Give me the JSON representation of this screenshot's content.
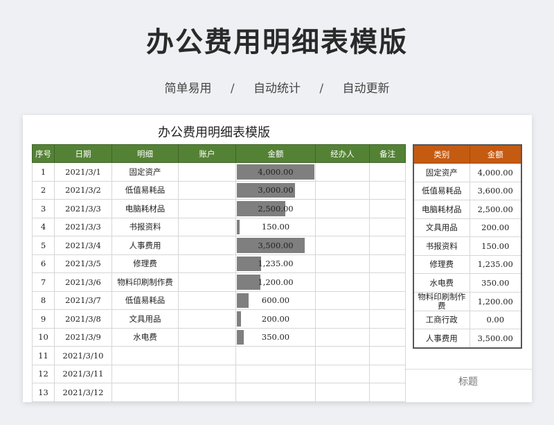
{
  "hero": {
    "title": "办公费用明细表模版",
    "subtitle": [
      "简单易用",
      "自动统计",
      "自动更新"
    ],
    "separator": "/"
  },
  "sheet": {
    "title": "办公费用明细表模版",
    "columns": [
      "序号",
      "日期",
      "明细",
      "账户",
      "金额",
      "经办人",
      "备注"
    ],
    "max_amount": 4000,
    "rows": [
      {
        "no": "1",
        "date": "2021/3/1",
        "item": "固定资产",
        "account": "",
        "amount": "4,000.00",
        "amount_value": 4000,
        "handler": "",
        "note": ""
      },
      {
        "no": "2",
        "date": "2021/3/2",
        "item": "低值易耗品",
        "account": "",
        "amount": "3,000.00",
        "amount_value": 3000,
        "handler": "",
        "note": ""
      },
      {
        "no": "3",
        "date": "2021/3/3",
        "item": "电脑耗材品",
        "account": "",
        "amount": "2,500.00",
        "amount_value": 2500,
        "handler": "",
        "note": ""
      },
      {
        "no": "4",
        "date": "2021/3/3",
        "item": "书报资料",
        "account": "",
        "amount": "150.00",
        "amount_value": 150,
        "handler": "",
        "note": ""
      },
      {
        "no": "5",
        "date": "2021/3/4",
        "item": "人事费用",
        "account": "",
        "amount": "3,500.00",
        "amount_value": 3500,
        "handler": "",
        "note": ""
      },
      {
        "no": "6",
        "date": "2021/3/5",
        "item": "修理费",
        "account": "",
        "amount": "1,235.00",
        "amount_value": 1235,
        "handler": "",
        "note": ""
      },
      {
        "no": "7",
        "date": "2021/3/6",
        "item": "物料印刷制作费",
        "account": "",
        "amount": "1,200.00",
        "amount_value": 1200,
        "handler": "",
        "note": ""
      },
      {
        "no": "8",
        "date": "2021/3/7",
        "item": "低值易耗品",
        "account": "",
        "amount": "600.00",
        "amount_value": 600,
        "handler": "",
        "note": ""
      },
      {
        "no": "9",
        "date": "2021/3/8",
        "item": "文具用品",
        "account": "",
        "amount": "200.00",
        "amount_value": 200,
        "handler": "",
        "note": ""
      },
      {
        "no": "10",
        "date": "2021/3/9",
        "item": "水电费",
        "account": "",
        "amount": "350.00",
        "amount_value": 350,
        "handler": "",
        "note": ""
      },
      {
        "no": "11",
        "date": "2021/3/10",
        "item": "",
        "account": "",
        "amount": "",
        "amount_value": 0,
        "handler": "",
        "note": ""
      },
      {
        "no": "12",
        "date": "2021/3/11",
        "item": "",
        "account": "",
        "amount": "",
        "amount_value": 0,
        "handler": "",
        "note": ""
      },
      {
        "no": "13",
        "date": "2021/3/12",
        "item": "",
        "account": "",
        "amount": "",
        "amount_value": 0,
        "handler": "",
        "note": ""
      }
    ]
  },
  "summary": {
    "columns": [
      "类别",
      "金额"
    ],
    "rows": [
      {
        "category": "固定资产",
        "amount": "4,000.00"
      },
      {
        "category": "低值易耗品",
        "amount": "3,600.00"
      },
      {
        "category": "电脑耗材品",
        "amount": "2,500.00"
      },
      {
        "category": "文具用品",
        "amount": "200.00"
      },
      {
        "category": "书报资料",
        "amount": "150.00"
      },
      {
        "category": "修理费",
        "amount": "1,235.00"
      },
      {
        "category": "水电费",
        "amount": "350.00"
      },
      {
        "category": "物料印刷制作费",
        "amount": "1,200.00"
      },
      {
        "category": "工商行政",
        "amount": "0.00"
      },
      {
        "category": "人事费用",
        "amount": "3,500.00"
      }
    ],
    "caption": "标题"
  },
  "colors": {
    "main_header": "#548235",
    "summary_header": "#c55a11",
    "data_bar": "#7f7f7f"
  }
}
